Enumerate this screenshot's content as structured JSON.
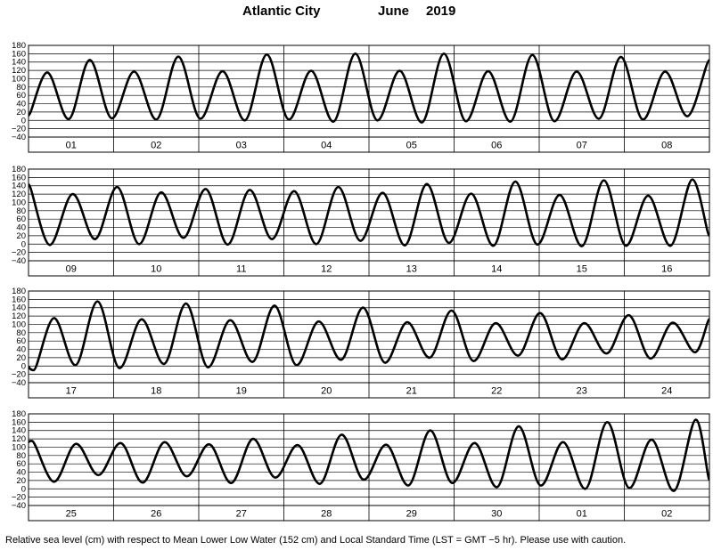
{
  "title": {
    "city": "Atlantic City",
    "month": "June",
    "year": "2019"
  },
  "footnote": "Relative sea level (cm) with respect to Mean Lower Low Water (152 cm) and Local Standard Time (LST = GMT −5 hr). Please use with caution.",
  "chart_data": [
    {
      "type": "line",
      "title": "",
      "xlabel": "",
      "ylabel": "",
      "ylim": [
        -40,
        180
      ],
      "yticks": [
        180,
        160,
        140,
        120,
        100,
        80,
        60,
        40,
        20,
        0,
        -20,
        -40
      ],
      "grid": true,
      "days": [
        "01",
        "02",
        "03",
        "04",
        "05",
        "06",
        "07",
        "08"
      ],
      "series": [
        {
          "name": "",
          "x_days": [
            0,
            0.22,
            0.47,
            0.72,
            0.98,
            1.24,
            1.5,
            1.76,
            2.02,
            2.28,
            2.54,
            2.8,
            3.06,
            3.32,
            3.58,
            3.84,
            4.1,
            4.36,
            4.62,
            4.88,
            5.14,
            5.4,
            5.66,
            5.92,
            6.18,
            6.44,
            6.7,
            6.96,
            7.22,
            7.48,
            7.74,
            8
          ],
          "values": [
            12,
            115,
            3,
            145,
            5,
            117,
            2,
            153,
            4,
            118,
            0,
            158,
            2,
            119,
            -3,
            160,
            0,
            119,
            -5,
            160,
            -2,
            118,
            -3,
            157,
            -2,
            117,
            4,
            152,
            2,
            117,
            10,
            145
          ]
        }
      ]
    },
    {
      "type": "line",
      "title": "",
      "xlabel": "",
      "ylabel": "",
      "ylim": [
        -40,
        180
      ],
      "yticks": [
        180,
        160,
        140,
        120,
        100,
        80,
        60,
        40,
        20,
        0,
        -20,
        -40
      ],
      "grid": true,
      "days": [
        "09",
        "10",
        "11",
        "12",
        "13",
        "14",
        "15",
        "16"
      ],
      "series": [
        {
          "name": "",
          "x_days": [
            0,
            0.25,
            0.52,
            0.78,
            1.04,
            1.3,
            1.56,
            1.82,
            2.08,
            2.34,
            2.6,
            2.86,
            3.12,
            3.38,
            3.64,
            3.9,
            4.16,
            4.42,
            4.68,
            4.94,
            5.2,
            5.46,
            5.72,
            5.98,
            6.24,
            6.5,
            6.76,
            7.02,
            7.28,
            7.54,
            7.8,
            8
          ],
          "values": [
            143,
            -2,
            120,
            12,
            137,
            0,
            124,
            15,
            132,
            -1,
            130,
            12,
            127,
            0,
            137,
            8,
            123,
            -3,
            144,
            3,
            121,
            -4,
            150,
            -1,
            118,
            -5,
            153,
            -4,
            116,
            -4,
            155,
            20
          ]
        }
      ]
    },
    {
      "type": "line",
      "title": "",
      "xlabel": "",
      "ylabel": "",
      "ylim": [
        -40,
        180
      ],
      "yticks": [
        180,
        160,
        140,
        120,
        100,
        80,
        60,
        40,
        20,
        0,
        -20,
        -40
      ],
      "grid": true,
      "days": [
        "17",
        "18",
        "19",
        "20",
        "21",
        "22",
        "23",
        "24"
      ],
      "series": [
        {
          "name": "",
          "x_days": [
            0,
            0.06,
            0.3,
            0.55,
            0.81,
            1.07,
            1.33,
            1.59,
            1.85,
            2.11,
            2.37,
            2.63,
            2.89,
            3.15,
            3.41,
            3.67,
            3.93,
            4.19,
            4.45,
            4.71,
            4.97,
            5.23,
            5.49,
            5.75,
            6.01,
            6.27,
            6.53,
            6.79,
            7.05,
            7.31,
            7.57,
            7.83,
            8
          ],
          "values": [
            -2,
            -10,
            115,
            2,
            155,
            -5,
            112,
            5,
            150,
            -3,
            110,
            10,
            145,
            2,
            107,
            15,
            140,
            8,
            105,
            20,
            133,
            12,
            103,
            25,
            127,
            16,
            103,
            30,
            122,
            18,
            104,
            33,
            113
          ]
        }
      ]
    },
    {
      "type": "line",
      "title": "",
      "xlabel": "",
      "ylabel": "",
      "ylim": [
        -40,
        180
      ],
      "yticks": [
        180,
        160,
        140,
        120,
        100,
        80,
        60,
        40,
        20,
        0,
        -20,
        -40
      ],
      "grid": true,
      "days": [
        "25",
        "26",
        "27",
        "28",
        "29",
        "30",
        "01",
        "02"
      ],
      "series": [
        {
          "name": "",
          "x_days": [
            0,
            0.04,
            0.3,
            0.56,
            0.82,
            1.08,
            1.34,
            1.6,
            1.86,
            2.12,
            2.38,
            2.64,
            2.9,
            3.16,
            3.42,
            3.68,
            3.94,
            4.2,
            4.46,
            4.72,
            4.98,
            5.24,
            5.5,
            5.76,
            6.02,
            6.28,
            6.54,
            6.8,
            7.06,
            7.32,
            7.58,
            7.84,
            8
          ],
          "values": [
            112,
            115,
            17,
            108,
            33,
            110,
            15,
            112,
            30,
            107,
            14,
            120,
            27,
            105,
            12,
            130,
            22,
            106,
            8,
            140,
            14,
            110,
            4,
            150,
            8,
            112,
            0,
            160,
            2,
            118,
            -5,
            166,
            22
          ]
        }
      ]
    }
  ]
}
